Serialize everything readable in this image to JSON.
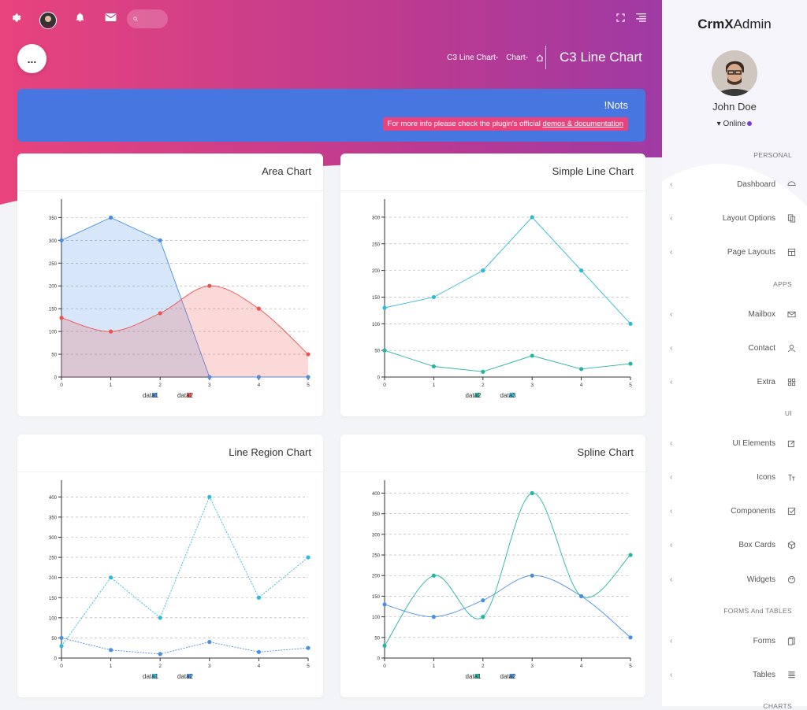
{
  "header": {
    "search_placeholder": "",
    "breadcrumb": [
      "C3 Line Chart-",
      "Chart-"
    ],
    "page_title": "C3 Line Chart",
    "fab_label": "..."
  },
  "notice": {
    "title": "!Nots",
    "text": "For more info please check the plugin's official ",
    "link": "demos & documentation"
  },
  "sidebar": {
    "brand_bold": "CrmX",
    "brand_rest": "Admin",
    "user_name": "John Doe",
    "user_status": "Online",
    "sections": [
      {
        "label": "PERSONAL",
        "items": [
          "Dashboard",
          "Layout Options",
          "Page Layouts"
        ]
      },
      {
        "label": "APPS",
        "items": [
          "Mailbox",
          "Contact",
          "Extra"
        ]
      },
      {
        "label": "UI",
        "items": [
          "UI Elements",
          "Icons",
          "Components",
          "Box Cards",
          "Widgets"
        ]
      },
      {
        "label": "FORMS And TABLES",
        "items": [
          "Forms",
          "Tables"
        ]
      },
      {
        "label": "CHARTS",
        "items": []
      }
    ]
  },
  "colors": {
    "blue": "#4a90e2",
    "red": "#ef5350",
    "teal": "#26b5a0",
    "cyan": "#2bbbd8",
    "notice": "#4876e0",
    "accent": "#e8437d"
  },
  "chart_data": [
    {
      "type": "area",
      "title": "Area Chart",
      "x": [
        0,
        1,
        2,
        3,
        4,
        5
      ],
      "ylim": [
        0,
        380
      ],
      "yticks": [
        0,
        50,
        100,
        150,
        200,
        250,
        300,
        350
      ],
      "series": [
        {
          "name": "data1",
          "values": [
            300,
            350,
            300,
            0,
            0,
            0
          ],
          "color": "#4a90e2",
          "curve": "linear"
        },
        {
          "name": "data2",
          "values": [
            130,
            100,
            140,
            200,
            150,
            50
          ],
          "color": "#ef5350",
          "curve": "spline"
        }
      ]
    },
    {
      "type": "line",
      "title": "Simple Line Chart",
      "x": [
        0,
        1,
        2,
        3,
        4,
        5
      ],
      "ylim": [
        0,
        325
      ],
      "yticks": [
        0,
        50,
        100,
        150,
        200,
        250,
        300
      ],
      "series": [
        {
          "name": "data2",
          "values": [
            50,
            20,
            10,
            40,
            15,
            25
          ],
          "color": "#26b5a0",
          "curve": "linear"
        },
        {
          "name": "data3",
          "values": [
            130,
            150,
            200,
            300,
            200,
            100
          ],
          "color": "#2bbbd8",
          "curve": "linear"
        }
      ]
    },
    {
      "type": "line",
      "title": "Line Region Chart",
      "x": [
        0,
        1,
        2,
        3,
        4,
        5
      ],
      "ylim": [
        0,
        430
      ],
      "yticks": [
        0,
        50,
        100,
        150,
        200,
        250,
        300,
        350,
        400
      ],
      "series": [
        {
          "name": "data1",
          "values": [
            30,
            200,
            100,
            400,
            150,
            250
          ],
          "color": "#2bbbd8",
          "curve": "linear"
        },
        {
          "name": "data2",
          "values": [
            50,
            20,
            10,
            40,
            15,
            25
          ],
          "color": "#4a90e2",
          "curve": "linear"
        }
      ]
    },
    {
      "type": "line",
      "title": "Spline Chart",
      "x": [
        0,
        1,
        2,
        3,
        4,
        5
      ],
      "ylim": [
        0,
        420
      ],
      "yticks": [
        0,
        50,
        100,
        150,
        200,
        250,
        300,
        350,
        400
      ],
      "series": [
        {
          "name": "data1",
          "values": [
            30,
            200,
            100,
            400,
            150,
            250
          ],
          "color": "#26b5a0",
          "curve": "spline"
        },
        {
          "name": "data2",
          "values": [
            130,
            100,
            140,
            200,
            150,
            50
          ],
          "color": "#4a90e2",
          "curve": "spline"
        }
      ]
    }
  ]
}
